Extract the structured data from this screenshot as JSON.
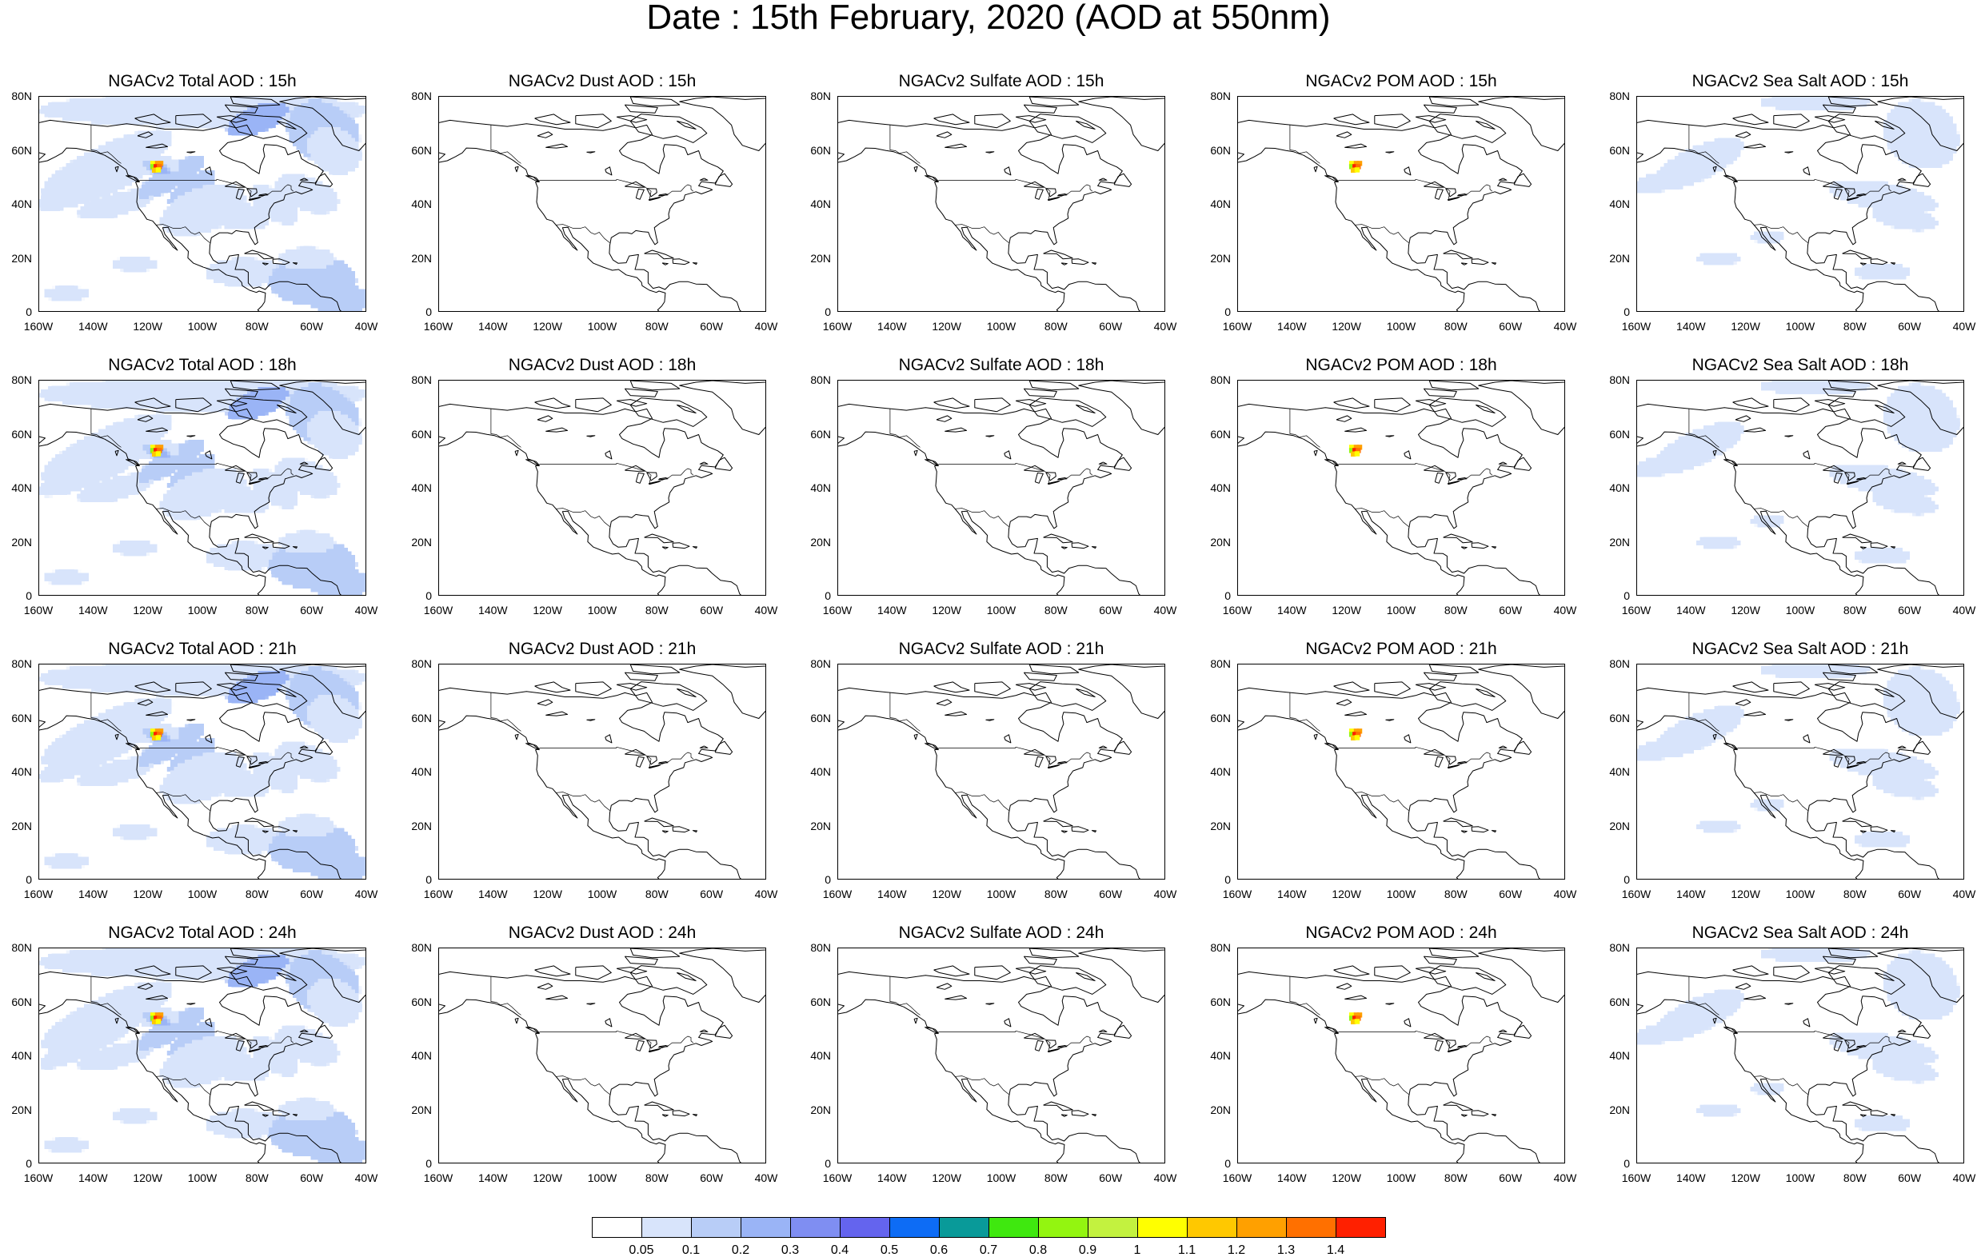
{
  "title": "Date : 15th February, 2020 (AOD at 550nm)",
  "axes": {
    "y_ticks": [
      "80N",
      "60N",
      "40N",
      "20N",
      "0"
    ],
    "x_ticks": [
      "160W",
      "140W",
      "120W",
      "100W",
      "80W",
      "60W",
      "40W"
    ]
  },
  "panels": [
    {
      "title": "NGACv2 Total AOD : 15h",
      "species": "total",
      "hour": 15
    },
    {
      "title": "NGACv2 Dust AOD : 15h",
      "species": "dust",
      "hour": 15
    },
    {
      "title": "NGACv2 Sulfate AOD : 15h",
      "species": "sulfate",
      "hour": 15
    },
    {
      "title": "NGACv2 POM AOD : 15h",
      "species": "pom",
      "hour": 15
    },
    {
      "title": "NGACv2 Sea Salt AOD : 15h",
      "species": "seasalt",
      "hour": 15
    },
    {
      "title": "NGACv2 Total AOD : 18h",
      "species": "total",
      "hour": 18
    },
    {
      "title": "NGACv2 Dust AOD : 18h",
      "species": "dust",
      "hour": 18
    },
    {
      "title": "NGACv2 Sulfate AOD : 18h",
      "species": "sulfate",
      "hour": 18
    },
    {
      "title": "NGACv2 POM AOD : 18h",
      "species": "pom",
      "hour": 18
    },
    {
      "title": "NGACv2 Sea Salt AOD : 18h",
      "species": "seasalt",
      "hour": 18
    },
    {
      "title": "NGACv2 Total AOD : 21h",
      "species": "total",
      "hour": 21
    },
    {
      "title": "NGACv2 Dust AOD : 21h",
      "species": "dust",
      "hour": 21
    },
    {
      "title": "NGACv2 Sulfate AOD : 21h",
      "species": "sulfate",
      "hour": 21
    },
    {
      "title": "NGACv2 POM AOD : 21h",
      "species": "pom",
      "hour": 21
    },
    {
      "title": "NGACv2 Sea Salt AOD : 21h",
      "species": "seasalt",
      "hour": 21
    },
    {
      "title": "NGACv2 Total AOD : 24h",
      "species": "total",
      "hour": 24
    },
    {
      "title": "NGACv2 Dust AOD : 24h",
      "species": "dust",
      "hour": 24
    },
    {
      "title": "NGACv2 Sulfate AOD : 24h",
      "species": "sulfate",
      "hour": 24
    },
    {
      "title": "NGACv2 POM AOD : 24h",
      "species": "pom",
      "hour": 24
    },
    {
      "title": "NGACv2 Sea Salt  AOD : 24h",
      "species": "seasalt",
      "hour": 24
    }
  ],
  "colorbar": {
    "labels": [
      "0.05",
      "0.1",
      "0.2",
      "0.3",
      "0.4",
      "0.5",
      "0.6",
      "0.7",
      "0.8",
      "0.9",
      "1",
      "1.1",
      "1.2",
      "1.3",
      "1.4"
    ],
    "colors": [
      "#ffffff",
      "#d8e4fb",
      "#b8cdf7",
      "#9ab4f6",
      "#7f8ef2",
      "#6464ee",
      "#0d6cf5",
      "#099a99",
      "#3fe80f",
      "#93f510",
      "#c3f23f",
      "#ffff00",
      "#ffc800",
      "#ffa000",
      "#ff7000",
      "#ff2000"
    ]
  }
}
